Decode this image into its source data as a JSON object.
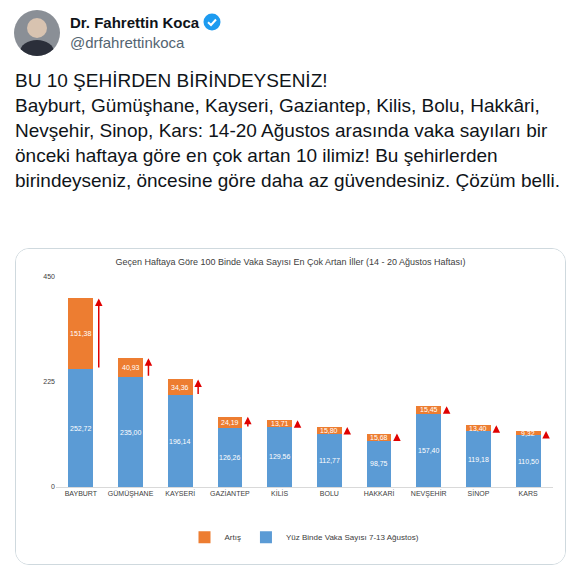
{
  "tweet": {
    "name": "Dr. Fahrettin Koca",
    "handle": "@drfahrettinkoca",
    "text": [
      "BU 10 ŞEHİRDEN BİRİNDEYSENİZ!",
      "Bayburt, Gümüşhane, Kayseri, Gaziantep, Kilis, Bolu, Hakkâri, Nevşehir, Sinop, Kars: 14-20 Ağustos arasında vaka sayıları bir önceki haftaya göre en çok artan 10 ilimiz! Bu şehirlerden birindeyseniz, öncesine göre daha az güvendesiniz. Çözüm belli."
    ]
  },
  "chart_data": {
    "type": "bar",
    "title": "Geçen Haftaya Göre 100 Binde Vaka Sayısı En Çok Artan İller (14 - 20 Ağustos Haftası)",
    "categories": [
      "BAYBURT",
      "GÜMÜŞHANE",
      "KAYSERİ",
      "GAZİANTEP",
      "KİLİS",
      "BOLU",
      "HAKKARİ",
      "NEVŞEHİR",
      "SİNOP",
      "KARS"
    ],
    "series": [
      {
        "name": "Yüz Binde Vaka Sayısı 7-13 Ağustos)",
        "color": "#5b9bd5",
        "values": [
          252.72,
          235.0,
          196.14,
          126.26,
          129.56,
          112.77,
          98.75,
          157.4,
          119.18,
          110.5
        ],
        "value_labels": [
          "252,72",
          "235,00",
          "196,14",
          "126,26",
          "129,56",
          "112,77",
          "98,75",
          "157,40",
          "119,18",
          "110,50"
        ]
      },
      {
        "name": "Artış",
        "color": "#ed7d31",
        "values": [
          151.38,
          40.93,
          34.36,
          24.19,
          13.71,
          15.8,
          15.68,
          15.45,
          13.4,
          9.32
        ],
        "value_labels": [
          "151,38",
          "40,93",
          "34,36",
          "24,19",
          "13,71",
          "15,80",
          "15,68",
          "15,45",
          "13,40",
          "9,32"
        ]
      }
    ],
    "stacked": true,
    "data_labels": true,
    "grid": false,
    "legend": "bottom",
    "ylim": [
      0,
      450
    ],
    "yticks": [
      0,
      225,
      450
    ]
  }
}
